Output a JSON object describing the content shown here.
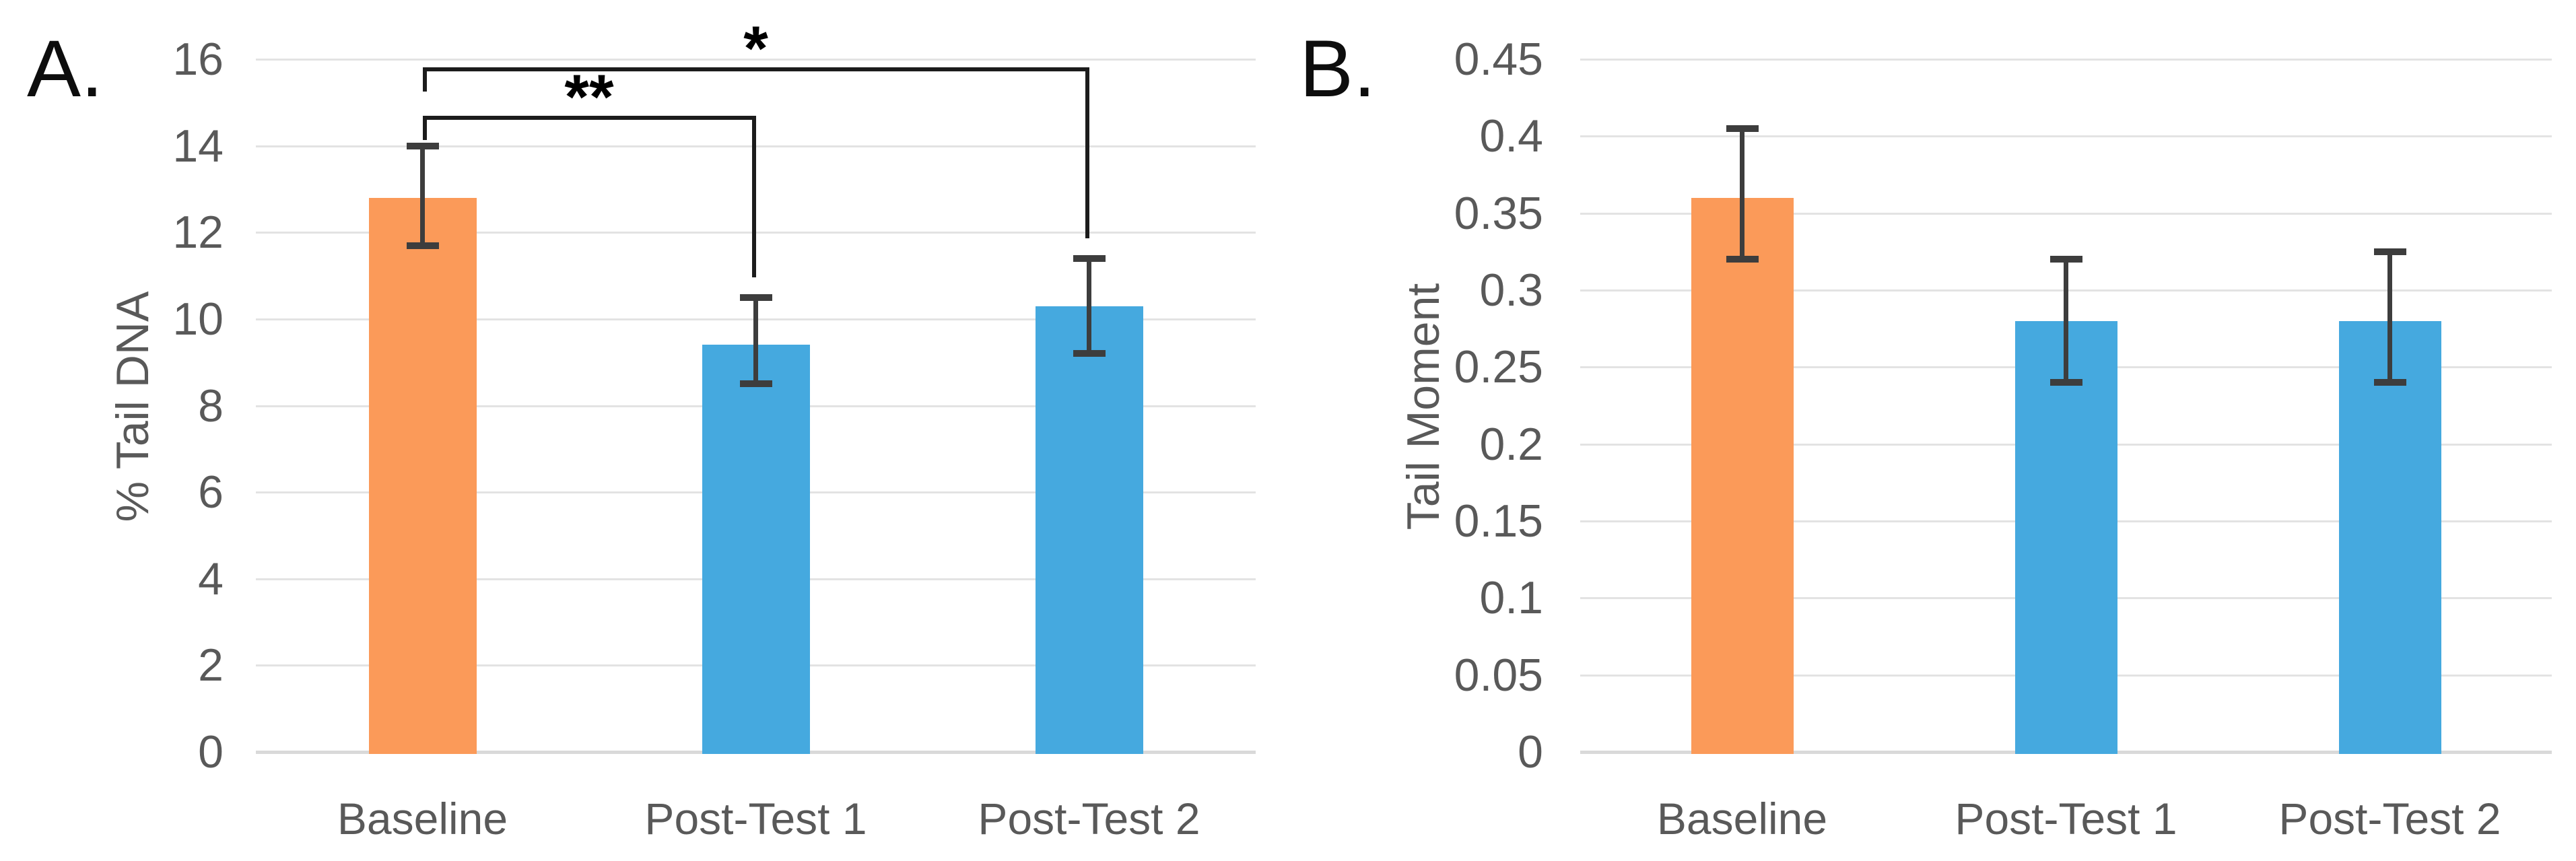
{
  "page": {
    "background": "#ffffff"
  },
  "colors": {
    "baseline_bar": "#FB9A59",
    "posttest_bar": "#45A9DF",
    "gridline": "#E3E3E3",
    "axis_text": "#595959",
    "error_bar": "#3D3D3D",
    "bracket": "#1C1C1C"
  },
  "chart_data": [
    {
      "type": "bar",
      "panel_label": "A.",
      "title": "",
      "categories": [
        "Baseline",
        "Post-Test 1",
        "Post-Test 2"
      ],
      "values": [
        12.8,
        9.4,
        10.3
      ],
      "error_upper": [
        14.0,
        10.5,
        11.4
      ],
      "error_lower": [
        11.7,
        8.5,
        9.2
      ],
      "bar_colors": [
        "#FB9A59",
        "#45A9DF",
        "#45A9DF"
      ],
      "xlabel": "",
      "ylabel": "% Tail DNA",
      "ylim": [
        0,
        16
      ],
      "yticks": [
        16,
        14,
        12,
        10,
        8,
        6,
        4,
        2,
        0
      ],
      "ytick_labels": [
        "16",
        "14",
        "12",
        "10",
        "8",
        "6",
        "4",
        "2",
        "0"
      ],
      "grid": true,
      "legend": "none",
      "annotations": [
        {
          "type": "significance-bracket",
          "label": "**",
          "from": "Baseline",
          "to": "Post-Test 1"
        },
        {
          "type": "significance-bracket",
          "label": "*",
          "from": "Baseline",
          "to": "Post-Test 2"
        }
      ]
    },
    {
      "type": "bar",
      "panel_label": "B.",
      "title": "",
      "categories": [
        "Baseline",
        "Post-Test 1",
        "Post-Test 2"
      ],
      "values": [
        0.36,
        0.28,
        0.28
      ],
      "error_upper": [
        0.405,
        0.32,
        0.325
      ],
      "error_lower": [
        0.32,
        0.24,
        0.24
      ],
      "bar_colors": [
        "#FB9A59",
        "#45A9DF",
        "#45A9DF"
      ],
      "xlabel": "",
      "ylabel": "Tail Moment",
      "ylim": [
        0,
        0.45
      ],
      "yticks": [
        0.45,
        0.4,
        0.35,
        0.3,
        0.25,
        0.2,
        0.15,
        0.1,
        0.05,
        0
      ],
      "ytick_labels": [
        "0.45",
        "0.4",
        "0.35",
        "0.3",
        "0.25",
        "0.2",
        "0.15",
        "0.1",
        "0.05",
        "0"
      ],
      "grid": true,
      "legend": "none",
      "annotations": []
    }
  ]
}
